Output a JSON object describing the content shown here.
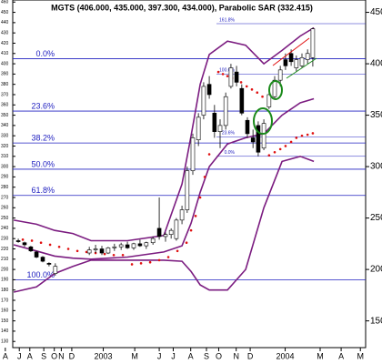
{
  "chart_data": {
    "type": "candlestick",
    "title": "MGTS (406.000, 435.000, 397.300, 434.000), Parabolic SAR (332.415)",
    "xlim": [
      0,
      104
    ],
    "xticks": [
      {
        "value": 1,
        "label": "A"
      },
      {
        "value": 5,
        "label": "J"
      },
      {
        "value": 8,
        "label": "A"
      },
      {
        "value": 12,
        "label": "S"
      },
      {
        "value": 15,
        "label": "O"
      },
      {
        "value": 17,
        "label": "N"
      },
      {
        "value": 20,
        "label": "D"
      },
      {
        "value": 29,
        "label": "2003"
      },
      {
        "value": 38,
        "label": "M"
      },
      {
        "value": 45,
        "label": "J"
      },
      {
        "value": 49,
        "label": "J"
      },
      {
        "value": 54,
        "label": "A"
      },
      {
        "value": 58.5,
        "label": "S"
      },
      {
        "value": 62,
        "label": "O"
      },
      {
        "value": 67,
        "label": "N"
      },
      {
        "value": 71,
        "label": "D"
      },
      {
        "value": 81,
        "label": "2004"
      },
      {
        "value": 91,
        "label": "M"
      },
      {
        "value": 97,
        "label": "A"
      },
      {
        "value": 102.5,
        "label": "M"
      }
    ],
    "ylim": [
      124,
      462
    ],
    "yticks": [
      150,
      200,
      250,
      300,
      350,
      400,
      450
    ],
    "left_ticks": [
      130,
      140,
      150,
      160,
      170,
      180,
      190,
      200,
      210,
      220,
      230,
      240,
      250,
      260,
      270,
      280,
      290,
      300,
      310,
      320,
      330,
      340,
      350,
      360,
      370,
      380,
      390,
      400,
      410,
      420,
      430,
      440,
      450,
      460
    ],
    "candles": {
      "up_color": "#ffffff",
      "down_color": "#000000",
      "x": [
        4.7,
        6.5,
        8.3,
        9.9,
        11.7,
        13.5,
        15.3,
        25,
        26.8,
        28.6,
        30.4,
        32.2,
        34.1,
        35.9,
        37.7,
        39.5,
        41.3,
        43.2,
        45,
        46.8,
        48.4,
        49.9,
        51.5,
        53,
        54.6,
        56.2,
        57.7,
        59.3,
        60.8,
        62.4,
        64,
        65.5,
        67.1,
        68.6,
        70.2,
        71.8,
        73.3,
        74.9,
        76.4,
        78,
        79.6,
        81.1,
        82.7,
        84.2,
        85.8,
        87.4,
        88.9
      ],
      "open": [
        228,
        226,
        222,
        217,
        212,
        206,
        196,
        216,
        219,
        220,
        216,
        221,
        222,
        224,
        221,
        225,
        223,
        226,
        240,
        232,
        234,
        230,
        248,
        258,
        296,
        326,
        350,
        380,
        352,
        334,
        340,
        378,
        392,
        376,
        345,
        328,
        340,
        318,
        358,
        368,
        384,
        404,
        410,
        396,
        398,
        404,
        406
      ],
      "high": [
        230,
        227,
        223,
        218,
        213,
        207,
        206,
        222,
        224,
        223,
        222,
        225,
        226,
        227,
        226,
        229,
        227,
        232,
        270,
        236,
        240,
        250,
        262,
        300,
        332,
        352,
        382,
        388,
        360,
        346,
        372,
        400,
        398,
        380,
        348,
        336,
        344,
        346,
        372,
        388,
        398,
        410,
        414,
        408,
        410,
        414,
        435
      ],
      "low": [
        226,
        222,
        217,
        211,
        207,
        203,
        194,
        214,
        216,
        214,
        215,
        218,
        219,
        220,
        219,
        222,
        220,
        224,
        229,
        227,
        230,
        228,
        244,
        255,
        292,
        320,
        346,
        366,
        328,
        318,
        336,
        376,
        378,
        350,
        328,
        318,
        310,
        316,
        356,
        366,
        378,
        394,
        398,
        392,
        396,
        400,
        397.3
      ],
      "close": [
        227,
        224,
        218,
        212,
        208,
        205,
        203,
        219,
        220,
        216,
        221,
        222,
        224,
        221,
        225,
        223,
        226,
        230,
        232,
        234,
        238,
        248,
        258,
        296,
        328,
        348,
        378,
        370,
        334,
        340,
        368,
        396,
        382,
        352,
        332,
        324,
        314,
        342,
        370,
        384,
        394,
        398,
        402,
        404,
        406,
        410,
        434
      ]
    },
    "bollinger": {
      "color": "#7b1c80",
      "x": [
        3.4,
        9.9,
        15.1,
        20.3,
        25.5,
        35.9,
        46.3,
        51.5,
        54.1,
        56.7,
        59.3,
        64.5,
        69.7,
        74.9,
        80.1,
        85.3,
        89.2
      ],
      "upper": [
        248,
        244,
        238,
        235,
        228,
        228,
        233,
        283,
        330,
        380,
        409,
        422,
        418,
        400,
        413,
        427,
        435
      ],
      "middle": [
        224,
        218,
        213,
        211,
        210,
        212,
        217,
        223,
        245,
        275,
        300,
        322,
        328,
        332,
        350,
        362,
        366
      ],
      "lower": [
        178,
        183,
        196,
        203,
        209,
        209,
        209,
        208,
        198,
        185,
        180,
        180,
        200,
        260,
        305,
        310,
        305
      ]
    },
    "sar": {
      "color": "#e01010",
      "x": [
        6.0,
        8.6,
        11.2,
        13.8,
        16.4,
        19.0,
        21.6,
        24.2,
        26.8,
        29.4,
        32.0,
        34.6,
        37.2,
        39.8,
        42.4,
        45.0,
        47.6,
        50.2,
        52.8,
        54.1,
        55.4,
        56.7,
        58.0,
        59.3,
        61.9,
        63.2,
        64.5,
        65.8,
        67.1,
        68.4,
        70.0,
        71.5,
        73.0,
        74.5,
        76.4,
        78.0,
        79.6,
        81.1,
        82.7,
        84.2,
        85.8,
        87.4,
        88.9
      ],
      "values": [
        229,
        228,
        226,
        224,
        222,
        220,
        218,
        217,
        216,
        215,
        214,
        214,
        205,
        206,
        207,
        209,
        212,
        218,
        226,
        238,
        252,
        270,
        290,
        312,
        392,
        390,
        388,
        386,
        384,
        382,
        378,
        375,
        372,
        368,
        311,
        314,
        317,
        320,
        324,
        328,
        330,
        331,
        332.415
      ]
    },
    "fib_color": "#2020c0",
    "fibonacci": [
      {
        "label": "0.0%",
        "value": 405
      },
      {
        "label": "23.6%",
        "value": 354
      },
      {
        "label": "38.2%",
        "value": 323
      },
      {
        "label": "50.0%",
        "value": 297.5
      },
      {
        "label": "61.8%",
        "value": 272
      },
      {
        "label": "100.0%",
        "value": 190
      }
    ],
    "inset_fibonacci": [
      {
        "label": "161.8%",
        "value": 439
      },
      {
        "label": "100.0%",
        "value": 390
      },
      {
        "label": "23.6%",
        "value": 329
      },
      {
        "label": "0.0%",
        "value": 310
      }
    ]
  }
}
